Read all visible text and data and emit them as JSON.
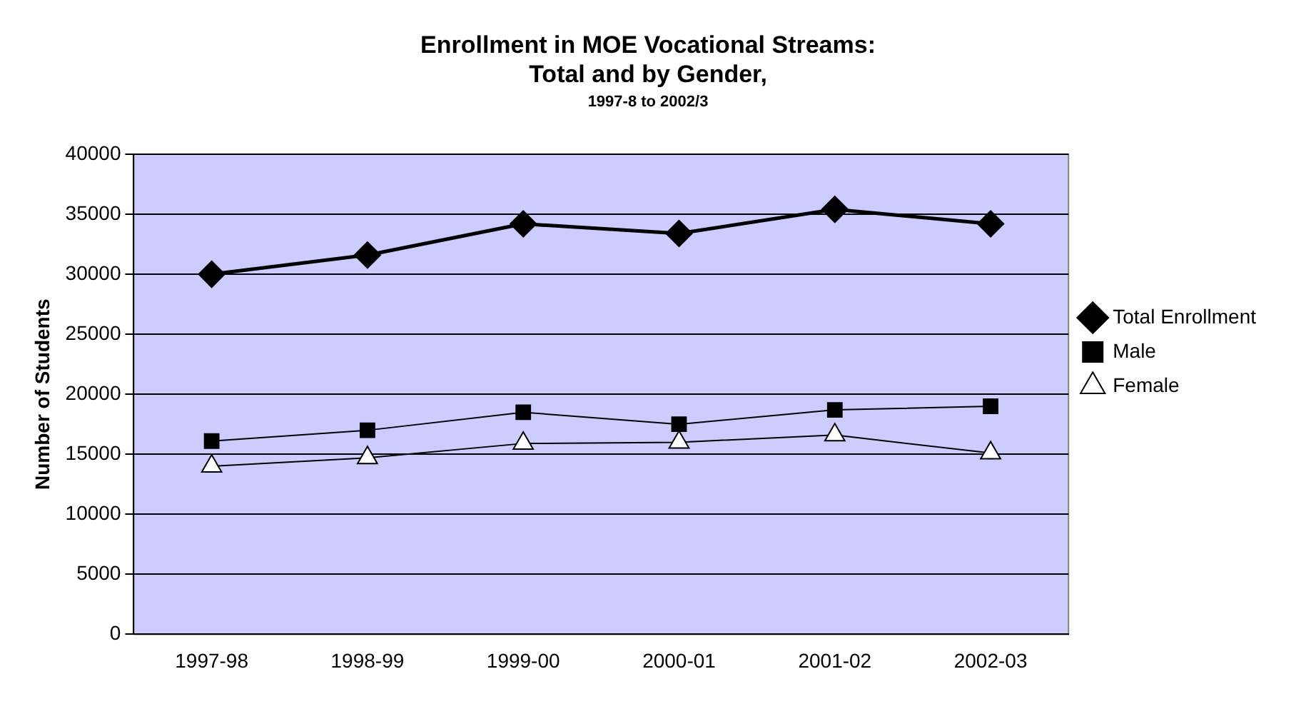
{
  "chart_data": {
    "type": "line",
    "title": "Enrollment in MOE Vocational Streams:\nTotal and by Gender,",
    "subtitle": "1997-8 to 2002/3",
    "ylabel": "Number of Students",
    "categories": [
      "1997-98",
      "1998-99",
      "1999-00",
      "2000-01",
      "2001-02",
      "2002-03"
    ],
    "series": [
      {
        "name": "Total Enrollment",
        "color": "#000000",
        "marker": "diamond",
        "values": [
          30000,
          31600,
          34200,
          33400,
          35400,
          34200
        ]
      },
      {
        "name": "Male",
        "color": "#000000",
        "marker": "square",
        "values": [
          16100,
          17000,
          18500,
          17500,
          18700,
          19000
        ]
      },
      {
        "name": "Female",
        "color": "#000000",
        "marker": "triangle",
        "values": [
          14000,
          14700,
          15900,
          16000,
          16600,
          15100
        ]
      }
    ],
    "ylim": [
      0,
      40000
    ],
    "yticks": [
      0,
      5000,
      10000,
      15000,
      20000,
      25000,
      30000,
      35000,
      40000
    ],
    "grid": "y",
    "legend": "right",
    "line_style": "solid"
  }
}
